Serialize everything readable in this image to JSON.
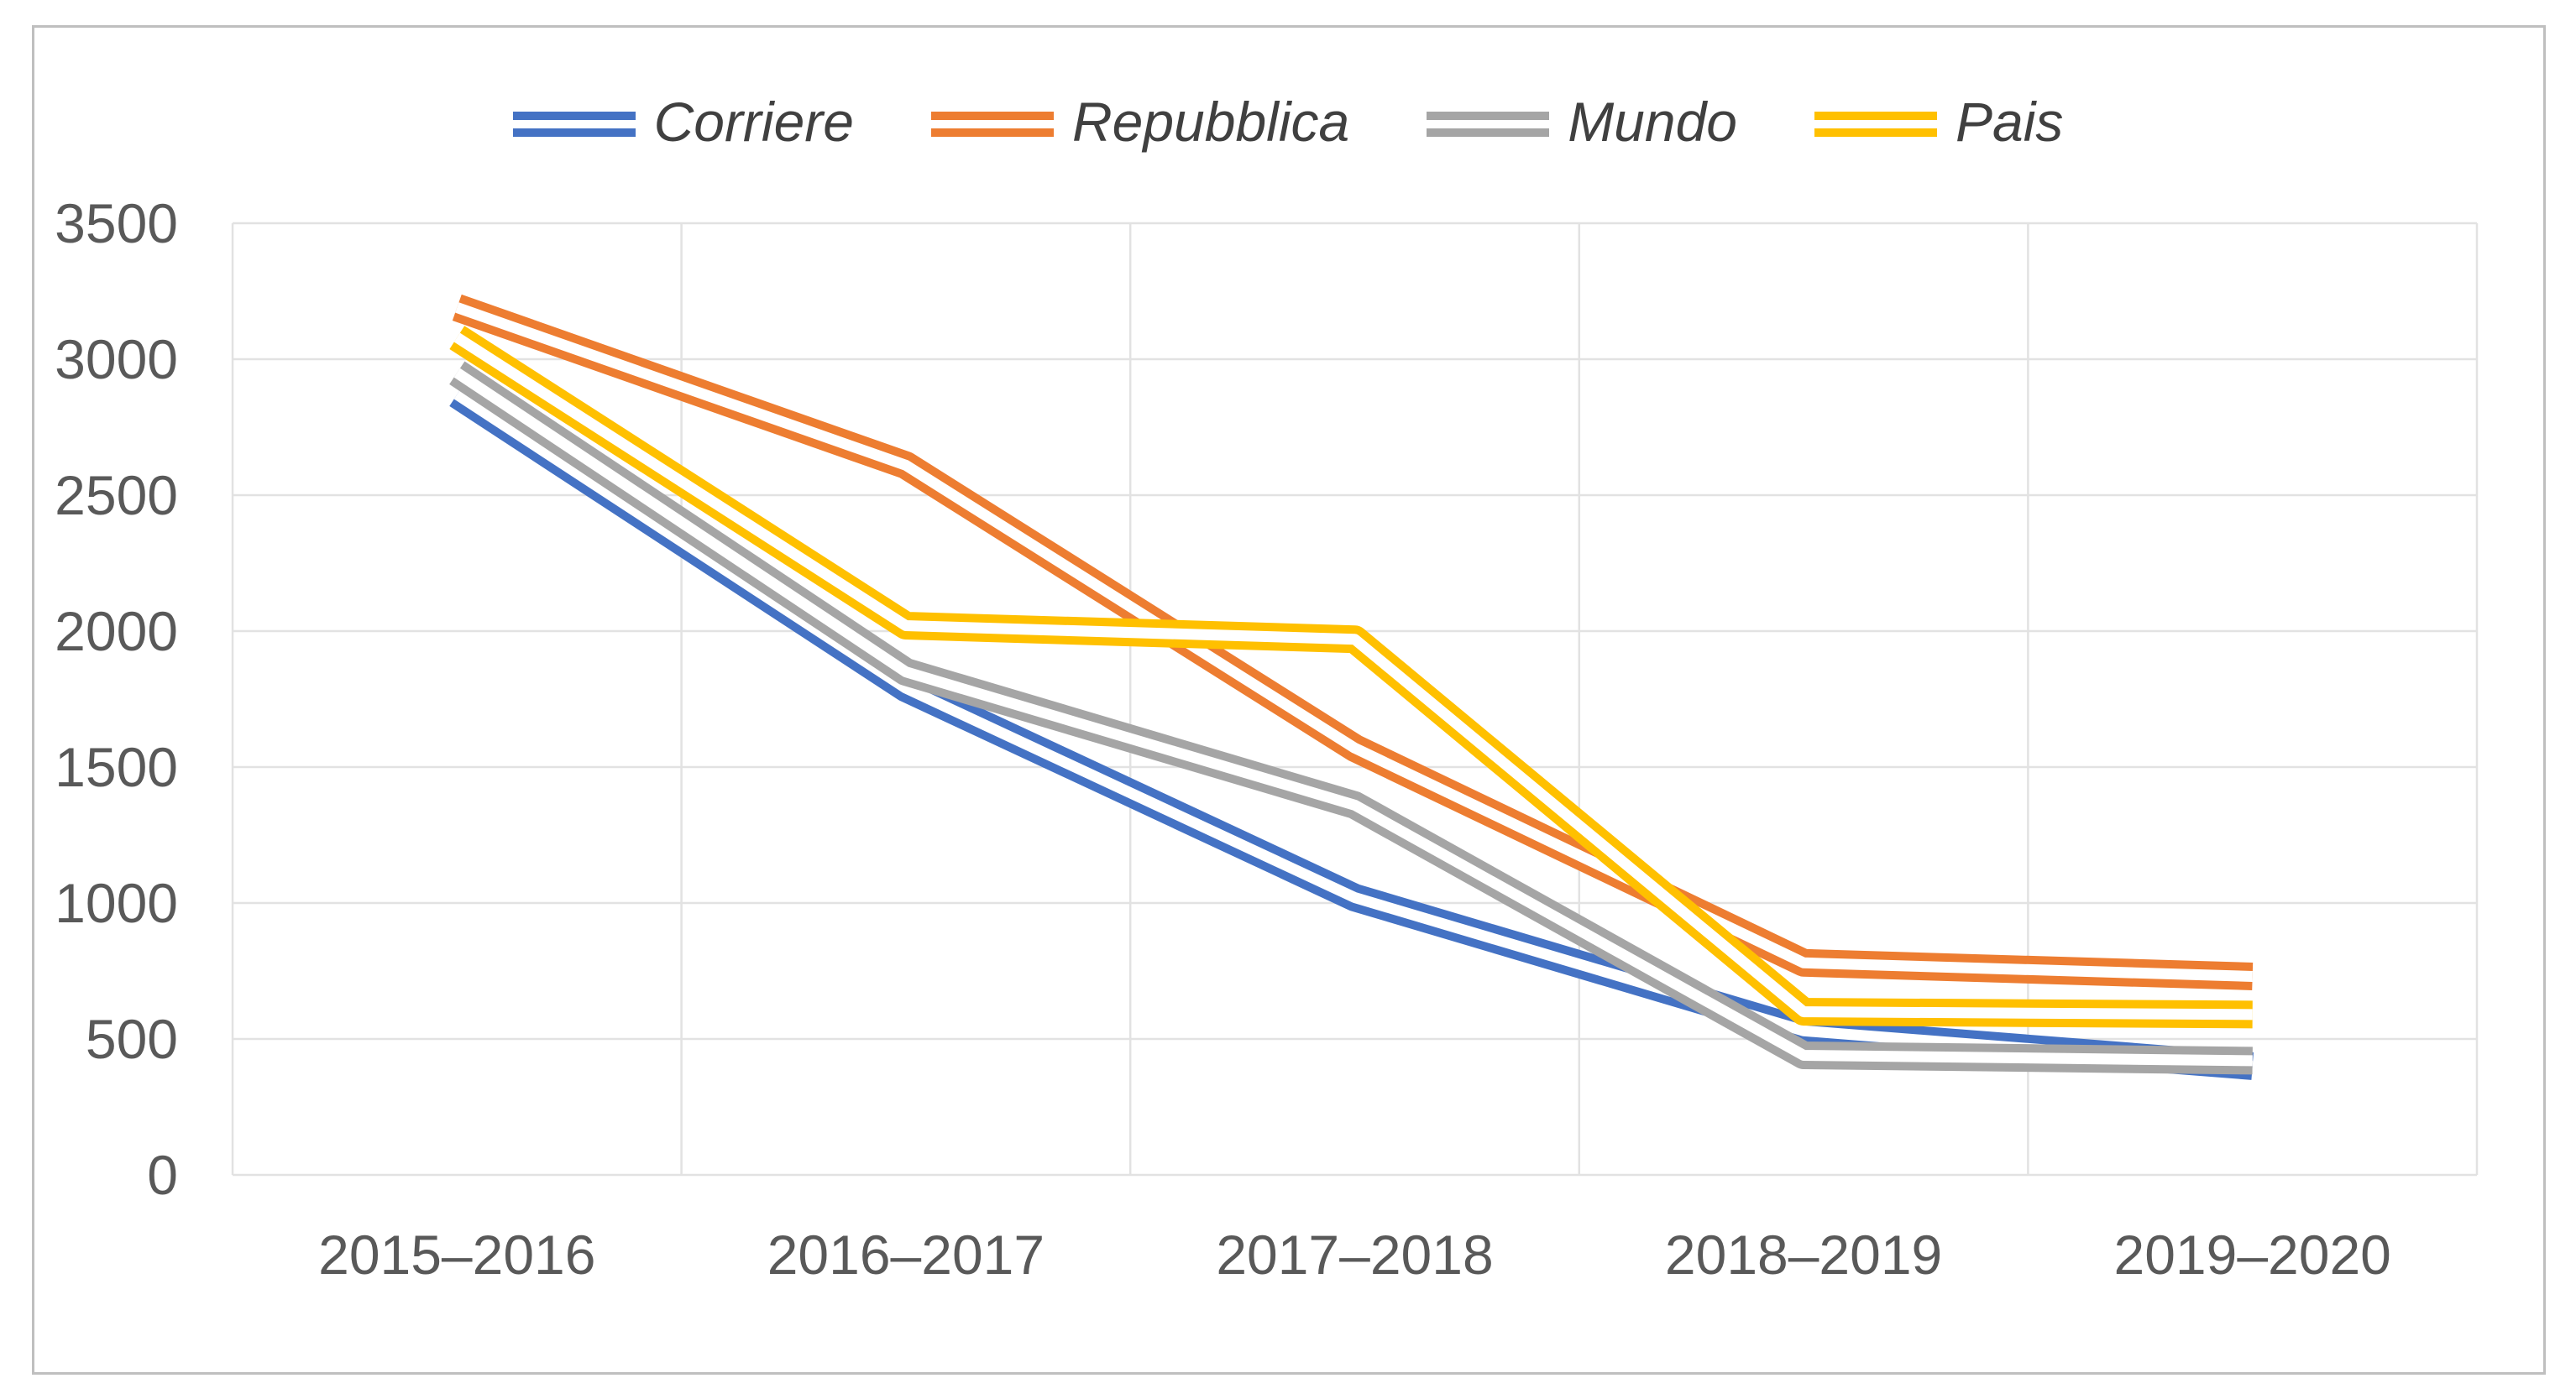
{
  "chart_data": {
    "type": "line",
    "title": "",
    "xlabel": "",
    "ylabel": "",
    "categories": [
      "2015–2016",
      "2016–2017",
      "2017–2018",
      "2018–2019",
      "2019–2020"
    ],
    "series": [
      {
        "name": "Corriere",
        "color": "#4472C4",
        "values": [
          2870,
          1790,
          1020,
          530,
          400
        ]
      },
      {
        "name": "Repubblica",
        "color": "#ED7D31",
        "values": [
          3190,
          2610,
          1570,
          780,
          730
        ]
      },
      {
        "name": "Mundo",
        "color": "#A5A5A5",
        "values": [
          2950,
          1850,
          1360,
          440,
          420
        ]
      },
      {
        "name": "Pais",
        "color": "#FFC000",
        "values": [
          3080,
          2020,
          1970,
          600,
          590
        ]
      }
    ],
    "ylim": [
      0,
      3500
    ],
    "y_ticks": [
      0,
      500,
      1000,
      1500,
      2000,
      2500,
      3000,
      3500
    ],
    "y_tick_labels": [
      "0",
      "500",
      "1000",
      "1500",
      "2000",
      "2500",
      "3000",
      "3500"
    ],
    "legend_position": "top",
    "legend_style": "double-line-swatch",
    "line_style": "double",
    "grid": "both",
    "gridline_color": "#E2E2E2",
    "axis_label_color": "#595959",
    "legend_text_color": "#404040",
    "figure_border_color": "#BFBFBF",
    "background_color": "#FFFFFF"
  }
}
